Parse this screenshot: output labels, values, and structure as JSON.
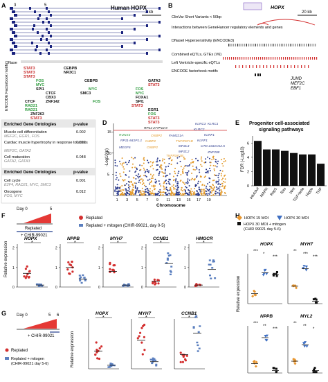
{
  "panels": {
    "A": {
      "label": "A",
      "gene_title": "Human HOPX",
      "exon_markers": [
        "3",
        "5"
      ],
      "scale_bar": "2 kb",
      "track_dnase": "DNase",
      "track_encode": "ENCODE Factorbook motifs",
      "motif_labels": [
        "STAT3",
        "STAT3",
        "STAT3",
        "CEBPB",
        "NR3C1",
        "FOS",
        "MYC",
        "SPI1",
        "CEBPB",
        "CTCF",
        "CBX3",
        "ZNF142",
        "MYC",
        "RAD21",
        "SMC3",
        "CTCF",
        "RAD21",
        "ZNF263",
        "STAT3",
        "FOS",
        "GATA3",
        "STAT3",
        "FOS",
        "MYC",
        "FOXA1",
        "SPI1",
        "STAT3",
        "EGR1",
        "FOS",
        "STAT3",
        "STAT3"
      ]
    },
    "B": {
      "label": "B",
      "gene": "HOPX",
      "mini_gene_label": "HOPX",
      "scale_bar": "20 kb",
      "track_rows": [
        "ClinVar Short Variants < 50bp",
        "Interactions between GeneHancer regulatory elements and genes",
        "DNaseI Hypersensitivity (ENCODE3)",
        "Combined eQTLs, GTEx (V6)",
        "Left Ventricle-specific eQTLs",
        "ENCODE factorbook motifs"
      ],
      "motif_genes": [
        "JUND",
        "MEF2C",
        "EBF1"
      ]
    },
    "C": {
      "label": "C",
      "header_term": "Enriched Gene Ontologies",
      "header_p": "p-value",
      "group1": [
        {
          "term": "Muscle cell differentiation",
          "genes": "MEF2C, EGR1, FOS",
          "p": "0.002"
        },
        {
          "term": "Cardiac muscle hypertrophy in response to stress",
          "genes": "MEF2C, GATA2",
          "p": "0.022"
        },
        {
          "term": "Cell maturation",
          "genes": "GATA2, GATA3",
          "p": "0.048"
        }
      ],
      "header2_term": "Enriched Gene Ontologies",
      "header2_p": "p-value",
      "group2": [
        {
          "term": "Cell cycle",
          "genes": "E2F4, RAD21, MYC, SMC3",
          "p": "0.001"
        },
        {
          "term": "Oncogene",
          "genes": "FOS, MYC",
          "p": "0.012"
        }
      ]
    },
    "D": {
      "label": "D",
      "ylabel": "-Log10(p)",
      "xlabel": "Chromosome",
      "chromosomes": [
        "1",
        "3",
        "5",
        "7",
        "9",
        "11",
        "13",
        "15",
        "17",
        "19"
      ],
      "yticks": [
        "5",
        "10",
        "15"
      ],
      "gene_labels": [
        "RP11-277P12.9",
        "KLRC3",
        "KLRC1",
        "RUNX3",
        "OSBP2",
        "FAM221A",
        "KLRC2",
        "KLRF1",
        "RP11-841P1.1",
        "N4BP2",
        "TNFRSF1B",
        "MPZL3",
        "KLRF1",
        "MEGF6",
        "MPZL2",
        "CTD-2331H12.5",
        "TNFRSF1B",
        "ZNF208",
        "OSBP2"
      ]
    },
    "E": {
      "label": "E",
      "title": "Progenitor cell-associated signaling pathways",
      "ylabel": "FDR (-Log10)",
      "categories": [
        "Ink4/Arf",
        "MAPK",
        "Rap1",
        "Ras",
        "Wnt",
        "TGF-beta",
        "Hippo",
        "TNF"
      ],
      "values": [
        6.3,
        5.1,
        5.1,
        4.9,
        4.6,
        4.4,
        4.4,
        3.1
      ],
      "ylim": [
        0,
        7
      ],
      "yticks": [
        "0",
        "2",
        "4",
        "6"
      ]
    },
    "F": {
      "label": "F",
      "timeline_day": "Day 0",
      "timeline_end": "5",
      "replated": "Replated",
      "chir": "+ CHIR-99021",
      "legend_replated": "Replated",
      "legend_mitogen": "Replated + mitogen (CHIR-99021, day 0-5)",
      "ylabel": "Relative expression",
      "genes": [
        "HOPX",
        "NPPB",
        "MYH7",
        "CCNB1",
        "HMGCR"
      ],
      "yticks": [
        [
          "0",
          "1",
          "2"
        ],
        [
          "0",
          "1",
          "2"
        ],
        [
          "0",
          "1",
          "2"
        ],
        [
          "0",
          "1",
          "2"
        ],
        [
          "0",
          "1",
          "2"
        ]
      ],
      "means": [
        {
          "replated": 0.7,
          "mitogen": 0.1
        },
        {
          "replated": 1.0,
          "mitogen": 0.4
        },
        {
          "replated": 0.8,
          "mitogen": 0.1
        },
        {
          "replated": 0.3,
          "mitogen": 1.2
        },
        {
          "replated": 0.1,
          "mitogen": 0.9
        }
      ],
      "sig": [
        "*",
        "*",
        "*",
        "*",
        "*"
      ]
    },
    "G": {
      "label": "G",
      "timeline_day": "Day 0",
      "timeline_mid": "5",
      "timeline_end": "6",
      "chir": "+ CHIR-99021",
      "legend_replated": "Replated",
      "legend_mitogen": "Replated + mitogen (CHIR-99021 day 5-6)",
      "ylabel": "Relative expression",
      "genes": [
        "HOPX",
        "MYH7",
        "CCNB1"
      ],
      "sig": [
        "*",
        "*",
        "*"
      ],
      "means": [
        {
          "replated": 0.5,
          "mitogen": 0.1
        },
        {
          "replated": 0.8,
          "mitogen": 0.2
        },
        {
          "replated": 0.4,
          "mitogen": 1.0
        }
      ]
    },
    "H": {
      "label": "H",
      "legend": [
        "HOPX 15 MOI",
        "HOPX 30 MOI",
        "HOPX 30 MOI + mitogen (CHIR 99021 day 5-6)"
      ],
      "ylabel": "Relative expression",
      "genes_top": [
        "HOPX",
        "MYH7"
      ],
      "genes_bottom": [
        "NPPB",
        "MYL2"
      ],
      "sig_top": [
        "***",
        "*",
        "***",
        "**",
        "***",
        "***"
      ],
      "sig_bottom": [
        "***",
        "**",
        "***",
        "**",
        "**",
        "*"
      ]
    }
  },
  "colors": {
    "stat3": "#c62828",
    "black": "#111111",
    "red": "#d32f2f",
    "blue": "#5b7fbf",
    "orange": "#e8962f",
    "manhattan_blue": "#2b3a8c",
    "manhattan_orange": "#e39a2b",
    "green": "#2e9b3e"
  }
}
